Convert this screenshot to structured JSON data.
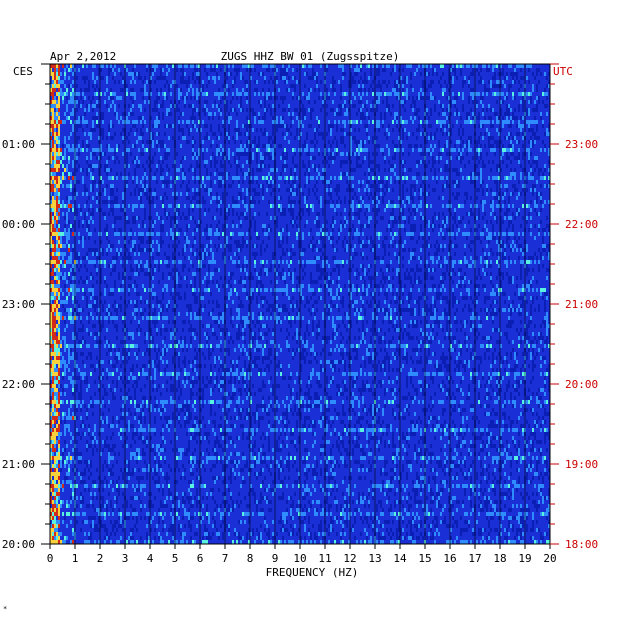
{
  "chart_data": {
    "type": "heatmap",
    "title_left": "Apr 2,2012",
    "title_center": "ZUGS HHZ BW 01 (Zugsspitze)",
    "left_time_label": "CES",
    "right_time_label": "UTC",
    "xlabel": "FREQUENCY (HZ)",
    "xlim": [
      0,
      20
    ],
    "x_ticks": [
      "0",
      "1",
      "2",
      "3",
      "4",
      "5",
      "6",
      "7",
      "8",
      "9",
      "10",
      "11",
      "12",
      "13",
      "14",
      "15",
      "16",
      "17",
      "18",
      "19",
      "20"
    ],
    "left_time_ticks": [
      "01:00",
      "00:00",
      "23:00",
      "22:00",
      "21:00",
      "20:00"
    ],
    "right_time_ticks": [
      "23:00",
      "22:00",
      "21:00",
      "20:00",
      "19:00",
      "18:00"
    ],
    "colors": {
      "background": "#1a2fd6",
      "low": "#0b1fb4",
      "mid": "#2f8cff",
      "high": "#59f2e0",
      "peak": "#f7d23c",
      "hot": "#d22a1a",
      "utc_label": "#cc0000"
    }
  },
  "footnote": "*"
}
